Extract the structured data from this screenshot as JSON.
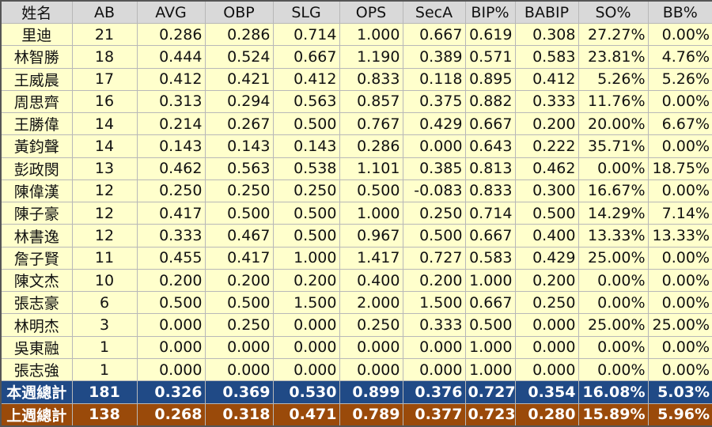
{
  "table": {
    "header": [
      "姓名",
      "AB",
      "AVG",
      "OBP",
      "SLG",
      "OPS",
      "SecA",
      "BIP%",
      "BABIP",
      "SO%",
      "BB%"
    ],
    "rows": [
      [
        "里迪",
        "21",
        "0.286",
        "0.286",
        "0.714",
        "1.000",
        "0.667",
        "0.619",
        "0.308",
        "27.27%",
        "0.00%"
      ],
      [
        "林智勝",
        "18",
        "0.444",
        "0.524",
        "0.667",
        "1.190",
        "0.389",
        "0.571",
        "0.583",
        "23.81%",
        "4.76%"
      ],
      [
        "王威晨",
        "17",
        "0.412",
        "0.421",
        "0.412",
        "0.833",
        "0.118",
        "0.895",
        "0.412",
        "5.26%",
        "5.26%"
      ],
      [
        "周思齊",
        "16",
        "0.313",
        "0.294",
        "0.563",
        "0.857",
        "0.375",
        "0.882",
        "0.333",
        "11.76%",
        "0.00%"
      ],
      [
        "王勝偉",
        "14",
        "0.214",
        "0.267",
        "0.500",
        "0.767",
        "0.429",
        "0.667",
        "0.200",
        "20.00%",
        "6.67%"
      ],
      [
        "黃鈞聲",
        "14",
        "0.143",
        "0.143",
        "0.143",
        "0.286",
        "0.000",
        "0.643",
        "0.222",
        "35.71%",
        "0.00%"
      ],
      [
        "彭政閔",
        "13",
        "0.462",
        "0.563",
        "0.538",
        "1.101",
        "0.385",
        "0.813",
        "0.462",
        "0.00%",
        "18.75%"
      ],
      [
        "陳偉漢",
        "12",
        "0.250",
        "0.250",
        "0.250",
        "0.500",
        "-0.083",
        "0.833",
        "0.300",
        "16.67%",
        "0.00%"
      ],
      [
        "陳子豪",
        "12",
        "0.417",
        "0.500",
        "0.500",
        "1.000",
        "0.250",
        "0.714",
        "0.500",
        "14.29%",
        "7.14%"
      ],
      [
        "林書逸",
        "12",
        "0.333",
        "0.467",
        "0.500",
        "0.967",
        "0.500",
        "0.667",
        "0.400",
        "13.33%",
        "13.33%"
      ],
      [
        "詹子賢",
        "11",
        "0.455",
        "0.417",
        "1.000",
        "1.417",
        "0.727",
        "0.583",
        "0.429",
        "25.00%",
        "0.00%"
      ],
      [
        "陳文杰",
        "10",
        "0.200",
        "0.200",
        "0.200",
        "0.400",
        "0.200",
        "1.000",
        "0.200",
        "0.00%",
        "0.00%"
      ],
      [
        "張志豪",
        "6",
        "0.500",
        "0.500",
        "1.500",
        "2.000",
        "1.500",
        "0.667",
        "0.250",
        "0.00%",
        "0.00%"
      ],
      [
        "林明杰",
        "3",
        "0.000",
        "0.250",
        "0.000",
        "0.250",
        "0.333",
        "0.500",
        "0.000",
        "25.00%",
        "25.00%"
      ],
      [
        "吳東融",
        "1",
        "0.000",
        "0.000",
        "0.000",
        "0.000",
        "0.000",
        "1.000",
        "0.000",
        "0.00%",
        "0.00%"
      ],
      [
        "張志強",
        "1",
        "0.000",
        "0.000",
        "0.000",
        "0.000",
        "0.000",
        "1.000",
        "0.000",
        "0.00%",
        "0.00%"
      ]
    ],
    "totals": [
      [
        "本週總計",
        "181",
        "0.326",
        "0.369",
        "0.530",
        "0.899",
        "0.376",
        "0.727",
        "0.354",
        "16.08%",
        "5.03%"
      ],
      [
        "上週總計",
        "138",
        "0.268",
        "0.318",
        "0.471",
        "0.789",
        "0.377",
        "0.723",
        "0.280",
        "15.89%",
        "5.96%"
      ]
    ]
  }
}
